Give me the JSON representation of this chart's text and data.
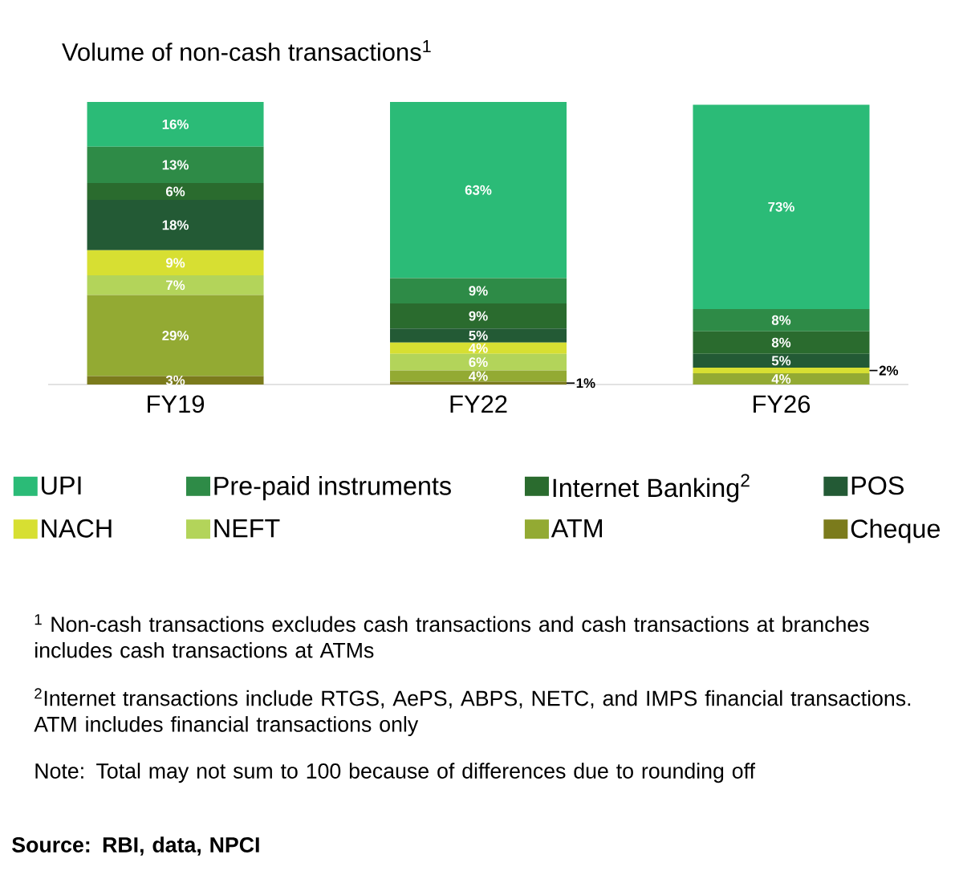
{
  "chart_data": {
    "type": "bar",
    "stacked": true,
    "title": "Volume of non-cash transactions$^{1}$",
    "categories": [
      "FY19",
      "FY22",
      "FY26"
    ],
    "series": [
      {
        "name": "Cheque",
        "color": "#7b7b1c",
        "values": [
          3,
          1,
          null
        ],
        "value_labels": [
          "3%",
          "1%",
          null
        ]
      },
      {
        "name": "ATM",
        "color": "#93aa33",
        "values": [
          29,
          4,
          4
        ],
        "value_labels": [
          "29%",
          "4%",
          "4%"
        ]
      },
      {
        "name": "NEFT",
        "color": "#b3d45a",
        "values": [
          7,
          6,
          null
        ],
        "value_labels": [
          "7%",
          "6%",
          null
        ]
      },
      {
        "name": "NACH",
        "color": "#d7df32",
        "values": [
          9,
          4,
          2
        ],
        "value_labels": [
          "9%",
          "4%",
          "2%"
        ]
      },
      {
        "name": "POS",
        "color": "#235a35",
        "values": [
          18,
          5,
          5
        ],
        "value_labels": [
          "18%",
          "5%",
          "5%"
        ]
      },
      {
        "name": "Internet Banking$^{2}$",
        "color": "#2a6b2e",
        "values": [
          6,
          9,
          8
        ],
        "value_labels": [
          "6%",
          "9%",
          "8%"
        ]
      },
      {
        "name": "Pre-paid instruments",
        "color": "#2e8b47",
        "values": [
          13,
          9,
          8
        ],
        "value_labels": [
          "13%",
          "9%",
          "8%"
        ]
      },
      {
        "name": "UPI",
        "color": "#2bbb77",
        "values": [
          16,
          63,
          73
        ],
        "value_labels": [
          "16%",
          "63%",
          "73%"
        ]
      }
    ],
    "legend": "bottom",
    "tick_labels": "x",
    "annotations": [
      "$^{1}$ Non-cash transactions excludes cash transactions and cash transactions at branches includes cash transactions at ATMs",
      "$^{2}$Internet transactions include RTGS, AePS, ABPS, NETC, and IMPS financial transactions. ATM includes financial transactions only",
      "Note: Total may not sum to 100 because of differences due to rounding off",
      "Source: RBI, data, NPCI"
    ]
  }
}
